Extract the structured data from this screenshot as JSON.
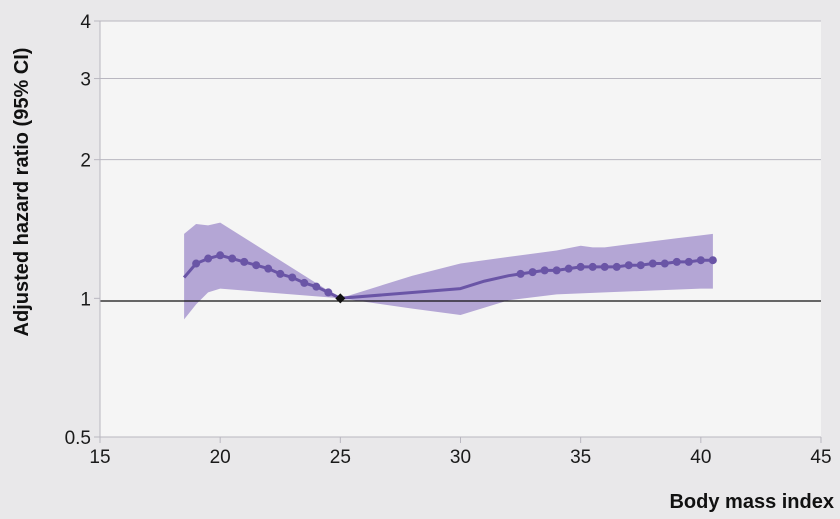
{
  "chart_data": {
    "type": "line",
    "xlabel": "Body mass index",
    "ylabel": "Adjusted hazard ratio (95% CI)",
    "xlim": [
      15,
      45
    ],
    "ylim": [
      0.5,
      4
    ],
    "yscale": "log",
    "x_ticks": [
      "15",
      "20",
      "25",
      "30",
      "35",
      "40",
      "45"
    ],
    "y_ticks": [
      {
        "value": 0.5,
        "label": "0.5"
      },
      {
        "value": 1,
        "label": "1"
      },
      {
        "value": 2,
        "label": "2"
      },
      {
        "value": 3,
        "label": "3"
      },
      {
        "value": 4,
        "label": "4"
      }
    ],
    "reference_line": 1,
    "reference_point": {
      "x": 25,
      "y": 1
    },
    "colors": {
      "line": "#6a55a6",
      "band": "#a898cf",
      "plot_bg": "#f5f5f5",
      "page_bg": "#e9e8ea",
      "grid": "#b9b7c0"
    },
    "series": [
      {
        "line": [
          {
            "x": 18.5,
            "y": 1.11
          },
          {
            "x": 19.0,
            "y": 1.19
          },
          {
            "x": 19.5,
            "y": 1.22
          },
          {
            "x": 20.0,
            "y": 1.24
          },
          {
            "x": 20.5,
            "y": 1.22
          },
          {
            "x": 21.0,
            "y": 1.2
          },
          {
            "x": 21.5,
            "y": 1.18
          },
          {
            "x": 22.0,
            "y": 1.16
          },
          {
            "x": 22.5,
            "y": 1.13
          },
          {
            "x": 23.0,
            "y": 1.11
          },
          {
            "x": 23.5,
            "y": 1.08
          },
          {
            "x": 24.0,
            "y": 1.06
          },
          {
            "x": 24.5,
            "y": 1.03
          },
          {
            "x": 25.0,
            "y": 1.0
          },
          {
            "x": 30.0,
            "y": 1.05
          },
          {
            "x": 31.0,
            "y": 1.09
          },
          {
            "x": 32.0,
            "y": 1.12
          },
          {
            "x": 32.5,
            "y": 1.13
          },
          {
            "x": 33.0,
            "y": 1.14
          },
          {
            "x": 33.5,
            "y": 1.15
          },
          {
            "x": 34.0,
            "y": 1.15
          },
          {
            "x": 34.5,
            "y": 1.16
          },
          {
            "x": 35.0,
            "y": 1.17
          },
          {
            "x": 35.5,
            "y": 1.17
          },
          {
            "x": 36.0,
            "y": 1.17
          },
          {
            "x": 36.5,
            "y": 1.17
          },
          {
            "x": 37.0,
            "y": 1.18
          },
          {
            "x": 37.5,
            "y": 1.18
          },
          {
            "x": 38.0,
            "y": 1.19
          },
          {
            "x": 38.5,
            "y": 1.19
          },
          {
            "x": 39.0,
            "y": 1.2
          },
          {
            "x": 39.5,
            "y": 1.2
          },
          {
            "x": 40.0,
            "y": 1.21
          },
          {
            "x": 40.5,
            "y": 1.21
          }
        ],
        "markers_x": [
          19.0,
          19.5,
          20.0,
          20.5,
          21.0,
          21.5,
          22.0,
          22.5,
          23.0,
          23.5,
          24.0,
          24.5,
          32.5,
          33.0,
          33.5,
          34.0,
          34.5,
          35.0,
          35.5,
          36.0,
          36.5,
          37.0,
          37.5,
          38.0,
          38.5,
          39.0,
          39.5,
          40.0,
          40.5
        ],
        "ci_upper": [
          {
            "x": 18.5,
            "y": 1.38
          },
          {
            "x": 19.0,
            "y": 1.45
          },
          {
            "x": 19.5,
            "y": 1.44
          },
          {
            "x": 20.0,
            "y": 1.46
          },
          {
            "x": 25.0,
            "y": 1.0
          },
          {
            "x": 28.0,
            "y": 1.12
          },
          {
            "x": 30.0,
            "y": 1.19
          },
          {
            "x": 32.0,
            "y": 1.23
          },
          {
            "x": 34.0,
            "y": 1.27
          },
          {
            "x": 35.0,
            "y": 1.3
          },
          {
            "x": 35.5,
            "y": 1.29
          },
          {
            "x": 36.0,
            "y": 1.29
          },
          {
            "x": 37.0,
            "y": 1.31
          },
          {
            "x": 38.0,
            "y": 1.33
          },
          {
            "x": 39.0,
            "y": 1.35
          },
          {
            "x": 40.0,
            "y": 1.37
          },
          {
            "x": 40.5,
            "y": 1.38
          }
        ],
        "ci_lower": [
          {
            "x": 18.5,
            "y": 0.9
          },
          {
            "x": 19.0,
            "y": 0.97
          },
          {
            "x": 19.5,
            "y": 1.03
          },
          {
            "x": 20.0,
            "y": 1.05
          },
          {
            "x": 25.0,
            "y": 1.0
          },
          {
            "x": 28.0,
            "y": 0.95
          },
          {
            "x": 30.0,
            "y": 0.92
          },
          {
            "x": 32.0,
            "y": 0.99
          },
          {
            "x": 34.0,
            "y": 1.02
          },
          {
            "x": 36.0,
            "y": 1.03
          },
          {
            "x": 38.0,
            "y": 1.04
          },
          {
            "x": 40.0,
            "y": 1.05
          },
          {
            "x": 40.5,
            "y": 1.05
          }
        ]
      }
    ]
  }
}
